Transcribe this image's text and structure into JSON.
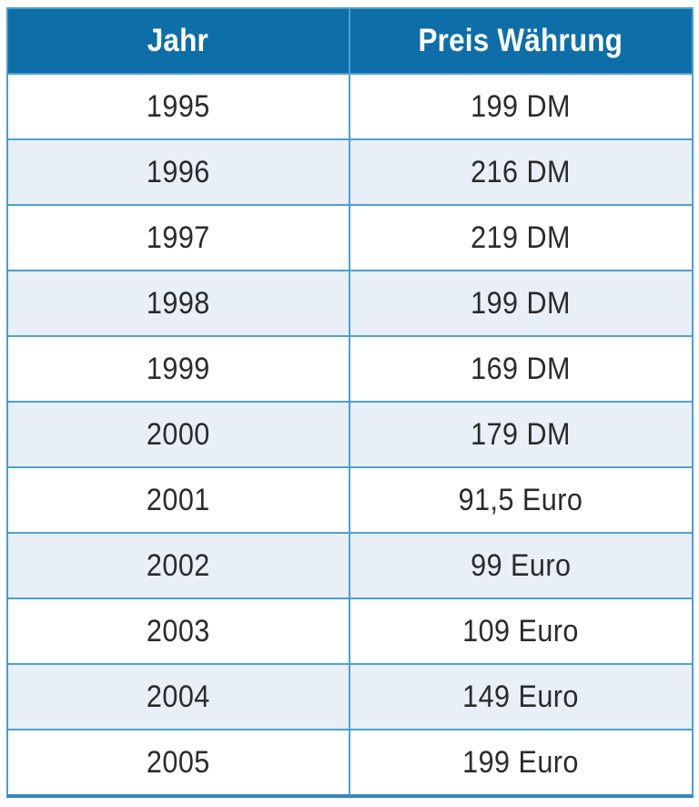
{
  "chart_data": {
    "type": "table",
    "columns": [
      "Jahr",
      "Preis Währung"
    ],
    "rows": [
      [
        "1995",
        "199 DM"
      ],
      [
        "1996",
        "216 DM"
      ],
      [
        "1997",
        "219 DM"
      ],
      [
        "1998",
        "199 DM"
      ],
      [
        "1999",
        "169 DM"
      ],
      [
        "2000",
        "179 DM"
      ],
      [
        "2001",
        "91,5 Euro"
      ],
      [
        "2002",
        "99 Euro"
      ],
      [
        "2003",
        "109 Euro"
      ],
      [
        "2004",
        "149 Euro"
      ],
      [
        "2005",
        "199 Euro"
      ]
    ],
    "layout_hints": {
      "header_position": "top",
      "zebra_striping": true,
      "alternate_rows_shaded": [
        "1996",
        "1998",
        "2000",
        "2002",
        "2004"
      ],
      "text_alignment": "center"
    }
  },
  "colors": {
    "header_background": "#0E6EA8",
    "header_text": "#FFFFFF",
    "row_background": "#FFFFFF",
    "row_alt_background": "#E9EFF7",
    "grid_line": "#4BA0D0",
    "bottom_border": "#2E89BC",
    "body_text": "#2B2B2B"
  }
}
